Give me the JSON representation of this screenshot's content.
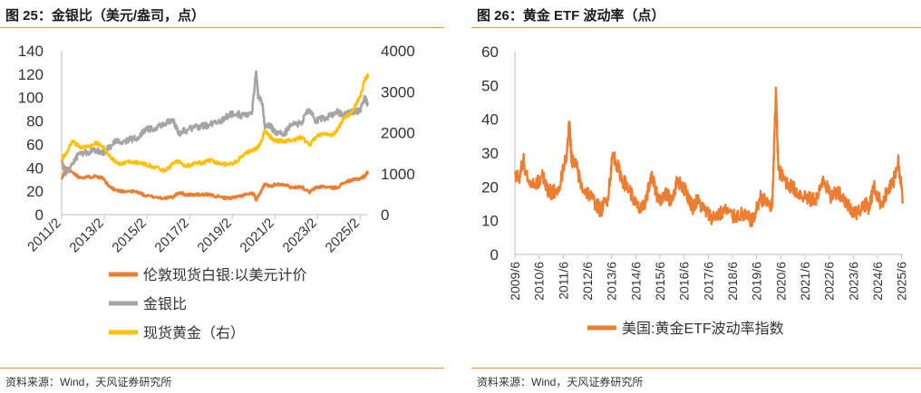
{
  "left": {
    "title": "图 25：金银比（美元/盎司，点）",
    "source": "资料来源：Wind，天风证券研究所"
  },
  "right": {
    "title": "图 26：黄金 ETF 波动率（点）",
    "source": "资料来源：Wind，天风证券研究所"
  },
  "colors": {
    "orange": "#ed7d31",
    "gray": "#a5a5a5",
    "gold": "#ffc000",
    "rule": "#f08c2e"
  },
  "chart_data": [
    {
      "type": "line",
      "title": "金银比（美元/盎司，点）",
      "x_start": 2011.08,
      "x_end": 2025.45,
      "x_tick_labels": [
        "2011/2",
        "2013/2",
        "2015/2",
        "2017/2",
        "2019/2",
        "2021/2",
        "2023/2",
        "2025/2"
      ],
      "x_tick_years": [
        2011.08,
        2013.08,
        2015.08,
        2017.08,
        2019.08,
        2021.08,
        2023.08,
        2025.08
      ],
      "ylim_left": [
        0,
        140
      ],
      "yticks_left": [
        0,
        20,
        40,
        60,
        80,
        100,
        120,
        140
      ],
      "ylim_right": [
        0,
        4000
      ],
      "yticks_right": [
        0,
        1000,
        2000,
        3000,
        4000
      ],
      "series": [
        {
          "name": "伦敦现货白银:以美元计价",
          "display_label": "伦敦现货白银:以美元计价",
          "axis": "left",
          "color": "#ed7d31",
          "points": [
            [
              2011.08,
              30
            ],
            [
              2011.3,
              40
            ],
            [
              2011.6,
              36
            ],
            [
              2011.9,
              32
            ],
            [
              2012.3,
              32
            ],
            [
              2012.7,
              33
            ],
            [
              2013.0,
              31
            ],
            [
              2013.3,
              24
            ],
            [
              2013.6,
              21
            ],
            [
              2013.9,
              20
            ],
            [
              2014.3,
              20
            ],
            [
              2014.7,
              19
            ],
            [
              2015.0,
              16
            ],
            [
              2015.5,
              15
            ],
            [
              2015.9,
              14
            ],
            [
              2016.3,
              15
            ],
            [
              2016.6,
              19
            ],
            [
              2016.9,
              17
            ],
            [
              2017.3,
              17
            ],
            [
              2017.7,
              17
            ],
            [
              2018.0,
              17
            ],
            [
              2018.5,
              15
            ],
            [
              2018.9,
              14
            ],
            [
              2019.3,
              15
            ],
            [
              2019.7,
              17
            ],
            [
              2020.1,
              18
            ],
            [
              2020.2,
              12
            ],
            [
              2020.35,
              17
            ],
            [
              2020.6,
              26
            ],
            [
              2020.9,
              24
            ],
            [
              2021.1,
              26
            ],
            [
              2021.5,
              26
            ],
            [
              2021.9,
              23
            ],
            [
              2022.3,
              24
            ],
            [
              2022.7,
              19
            ],
            [
              2023.0,
              23
            ],
            [
              2023.3,
              24
            ],
            [
              2023.7,
              23
            ],
            [
              2024.0,
              23
            ],
            [
              2024.3,
              27
            ],
            [
              2024.6,
              29
            ],
            [
              2024.9,
              30
            ],
            [
              2025.1,
              31
            ],
            [
              2025.3,
              33
            ],
            [
              2025.45,
              37
            ]
          ]
        },
        {
          "name": "金银比",
          "display_label": "金银比",
          "axis": "left",
          "color": "#a5a5a5",
          "points": [
            [
              2011.08,
              45
            ],
            [
              2011.3,
              35
            ],
            [
              2011.6,
              44
            ],
            [
              2011.9,
              52
            ],
            [
              2012.3,
              53
            ],
            [
              2012.7,
              55
            ],
            [
              2013.0,
              53
            ],
            [
              2013.3,
              57
            ],
            [
              2013.6,
              62
            ],
            [
              2013.9,
              62
            ],
            [
              2014.3,
              64
            ],
            [
              2014.7,
              66
            ],
            [
              2015.0,
              73
            ],
            [
              2015.5,
              74
            ],
            [
              2015.9,
              78
            ],
            [
              2016.3,
              80
            ],
            [
              2016.6,
              70
            ],
            [
              2016.9,
              72
            ],
            [
              2017.3,
              74
            ],
            [
              2017.7,
              76
            ],
            [
              2018.0,
              76
            ],
            [
              2018.5,
              80
            ],
            [
              2018.9,
              85
            ],
            [
              2019.3,
              86
            ],
            [
              2019.7,
              84
            ],
            [
              2020.0,
              86
            ],
            [
              2020.2,
              122
            ],
            [
              2020.3,
              100
            ],
            [
              2020.5,
              95
            ],
            [
              2020.6,
              76
            ],
            [
              2020.9,
              75
            ],
            [
              2021.1,
              70
            ],
            [
              2021.5,
              69
            ],
            [
              2021.9,
              77
            ],
            [
              2022.3,
              78
            ],
            [
              2022.7,
              90
            ],
            [
              2023.0,
              80
            ],
            [
              2023.3,
              82
            ],
            [
              2023.7,
              84
            ],
            [
              2024.0,
              88
            ],
            [
              2024.3,
              85
            ],
            [
              2024.6,
              87
            ],
            [
              2024.9,
              88
            ],
            [
              2025.1,
              90
            ],
            [
              2025.3,
              99
            ],
            [
              2025.45,
              95
            ]
          ]
        },
        {
          "name": "现货黄金（右）",
          "display_label": "现货黄金（右）",
          "axis": "right",
          "color": "#ffc000",
          "points": [
            [
              2011.08,
              1350
            ],
            [
              2011.3,
              1500
            ],
            [
              2011.6,
              1800
            ],
            [
              2011.9,
              1650
            ],
            [
              2012.3,
              1650
            ],
            [
              2012.7,
              1750
            ],
            [
              2013.0,
              1670
            ],
            [
              2013.3,
              1450
            ],
            [
              2013.6,
              1300
            ],
            [
              2013.9,
              1230
            ],
            [
              2014.3,
              1300
            ],
            [
              2014.7,
              1260
            ],
            [
              2015.0,
              1230
            ],
            [
              2015.5,
              1150
            ],
            [
              2015.9,
              1070
            ],
            [
              2016.3,
              1230
            ],
            [
              2016.6,
              1320
            ],
            [
              2016.9,
              1180
            ],
            [
              2017.3,
              1240
            ],
            [
              2017.7,
              1270
            ],
            [
              2018.0,
              1330
            ],
            [
              2018.5,
              1240
            ],
            [
              2018.9,
              1220
            ],
            [
              2019.3,
              1300
            ],
            [
              2019.7,
              1500
            ],
            [
              2020.0,
              1560
            ],
            [
              2020.2,
              1600
            ],
            [
              2020.4,
              1720
            ],
            [
              2020.6,
              2050
            ],
            [
              2020.9,
              1880
            ],
            [
              2021.1,
              1800
            ],
            [
              2021.5,
              1800
            ],
            [
              2021.9,
              1800
            ],
            [
              2022.3,
              1900
            ],
            [
              2022.7,
              1700
            ],
            [
              2023.0,
              1900
            ],
            [
              2023.3,
              1980
            ],
            [
              2023.7,
              1920
            ],
            [
              2024.0,
              2050
            ],
            [
              2024.3,
              2350
            ],
            [
              2024.6,
              2450
            ],
            [
              2024.9,
              2700
            ],
            [
              2025.1,
              2900
            ],
            [
              2025.3,
              3300
            ],
            [
              2025.45,
              3400
            ]
          ]
        }
      ]
    },
    {
      "type": "line",
      "title": "黄金 ETF 波动率（点）",
      "x_start": 2009.45,
      "x_end": 2025.5,
      "x_tick_labels": [
        "2009/6",
        "2010/6",
        "2011/6",
        "2012/6",
        "2013/6",
        "2014/6",
        "2015/6",
        "2016/6",
        "2017/6",
        "2018/6",
        "2019/6",
        "2020/6",
        "2021/6",
        "2022/6",
        "2023/6",
        "2024/6",
        "2025/6"
      ],
      "x_tick_years": [
        2009.45,
        2010.45,
        2011.45,
        2012.45,
        2013.45,
        2014.45,
        2015.45,
        2016.45,
        2017.45,
        2018.45,
        2019.45,
        2020.45,
        2021.45,
        2022.45,
        2023.45,
        2024.45,
        2025.45
      ],
      "ylim": [
        0,
        60
      ],
      "yticks": [
        0,
        10,
        20,
        30,
        40,
        50,
        60
      ],
      "series": [
        {
          "name": "美国:黄金ETF波动率指数",
          "display_label": "美国:黄金ETF波动率指数",
          "color": "#ed7d31",
          "points": [
            [
              2009.45,
              24
            ],
            [
              2009.6,
              22
            ],
            [
              2009.8,
              28
            ],
            [
              2010.0,
              22
            ],
            [
              2010.3,
              20
            ],
            [
              2010.6,
              24
            ],
            [
              2010.8,
              19
            ],
            [
              2011.0,
              18
            ],
            [
              2011.3,
              20
            ],
            [
              2011.6,
              30
            ],
            [
              2011.7,
              39
            ],
            [
              2011.8,
              28
            ],
            [
              2012.0,
              26
            ],
            [
              2012.2,
              20
            ],
            [
              2012.5,
              18
            ],
            [
              2012.8,
              15
            ],
            [
              2013.0,
              13
            ],
            [
              2013.3,
              17
            ],
            [
              2013.5,
              30
            ],
            [
              2013.7,
              26
            ],
            [
              2013.9,
              22
            ],
            [
              2014.2,
              19
            ],
            [
              2014.5,
              14
            ],
            [
              2014.7,
              13
            ],
            [
              2014.9,
              17
            ],
            [
              2015.1,
              23
            ],
            [
              2015.4,
              16
            ],
            [
              2015.7,
              18
            ],
            [
              2015.9,
              16
            ],
            [
              2016.2,
              22
            ],
            [
              2016.5,
              19
            ],
            [
              2016.8,
              14
            ],
            [
              2017.0,
              16
            ],
            [
              2017.3,
              13
            ],
            [
              2017.6,
              11
            ],
            [
              2017.9,
              12
            ],
            [
              2018.2,
              13
            ],
            [
              2018.5,
              11
            ],
            [
              2018.8,
              12
            ],
            [
              2019.0,
              11
            ],
            [
              2019.3,
              10
            ],
            [
              2019.6,
              17
            ],
            [
              2019.9,
              15
            ],
            [
              2020.1,
              14
            ],
            [
              2020.2,
              38
            ],
            [
              2020.25,
              48
            ],
            [
              2020.35,
              25
            ],
            [
              2020.6,
              22
            ],
            [
              2020.9,
              20
            ],
            [
              2021.2,
              18
            ],
            [
              2021.5,
              17
            ],
            [
              2021.7,
              16
            ],
            [
              2022.0,
              17
            ],
            [
              2022.2,
              23
            ],
            [
              2022.5,
              17
            ],
            [
              2022.8,
              19
            ],
            [
              2023.1,
              16
            ],
            [
              2023.3,
              14
            ],
            [
              2023.6,
              12
            ],
            [
              2023.9,
              15
            ],
            [
              2024.1,
              14
            ],
            [
              2024.3,
              20
            ],
            [
              2024.6,
              15
            ],
            [
              2024.9,
              19
            ],
            [
              2025.1,
              21
            ],
            [
              2025.3,
              28
            ],
            [
              2025.5,
              16
            ]
          ]
        }
      ]
    }
  ]
}
